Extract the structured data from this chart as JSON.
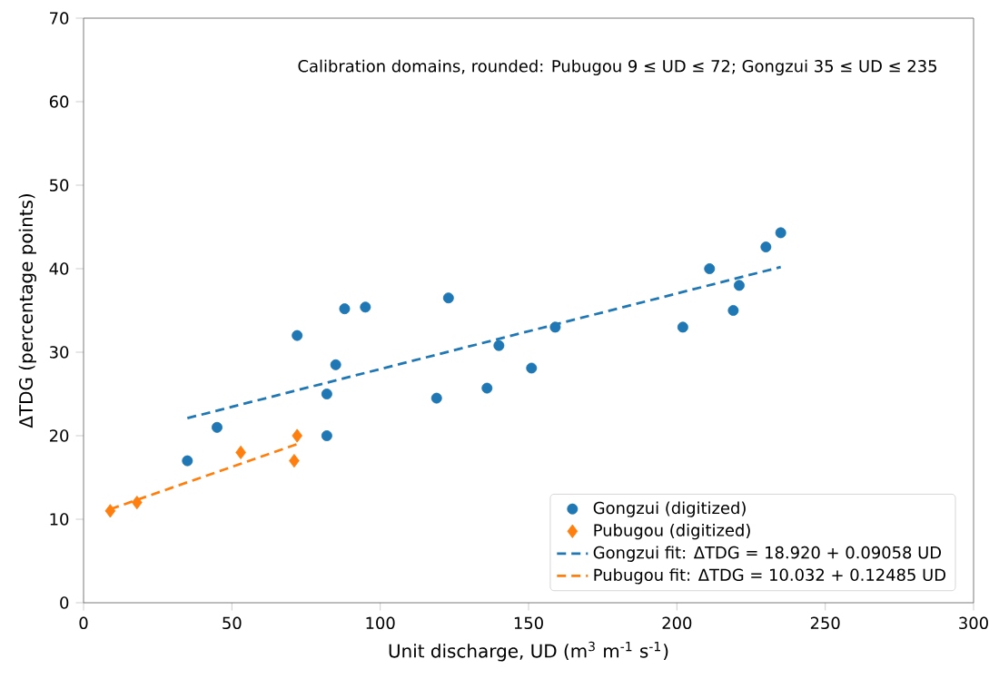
{
  "chart_data": {
    "type": "scatter",
    "xlabel": "Unit discharge, UD (m$^{3}$ m$^{-1}$ s$^{-1}$)",
    "ylabel": "ΔTDG (percentage points)",
    "xlim": [
      0,
      300
    ],
    "ylim": [
      0,
      70
    ],
    "xticks": [
      0,
      50,
      100,
      150,
      200,
      250,
      300
    ],
    "yticks": [
      0,
      10,
      20,
      30,
      40,
      50,
      60,
      70
    ],
    "grid": false,
    "legend": "bottom right",
    "annotations": [
      "Calibration domains, rounded: Pubugou 9 ≤ UD ≤ 72; Gongzui 35 ≤ UD ≤ 235"
    ],
    "series": [
      {
        "name": "Gongzui (digitized)",
        "marker": "circle",
        "color": "#1f77b4",
        "x": [
          35,
          45,
          72,
          82,
          82,
          85,
          88,
          95,
          119,
          123,
          136,
          140,
          151,
          159,
          202,
          211,
          219,
          221,
          230,
          235
        ],
        "values": [
          17,
          21,
          32,
          25,
          20,
          28.5,
          35.2,
          35.4,
          24.5,
          36.5,
          25.7,
          30.8,
          28.1,
          33,
          33,
          40,
          35,
          38,
          42.6,
          44.3
        ]
      },
      {
        "name": "Pubugou (digitized)",
        "marker": "diamond",
        "color": "#ff7f0e",
        "x": [
          9,
          18,
          53,
          71,
          72
        ],
        "values": [
          11,
          12,
          18,
          17,
          20
        ]
      },
      {
        "name": "Gongzui fit: ΔTDG = 18.920 + 0.09058 UD",
        "type": "line",
        "line_style": "dashed",
        "color": "#1f77b4",
        "x": [
          35,
          235
        ],
        "values": [
          22.1,
          40.2
        ]
      },
      {
        "name": "Pubugou fit: ΔTDG = 10.032 + 0.12485 UD",
        "type": "line",
        "line_style": "dashed",
        "color": "#ff7f0e",
        "x": [
          9,
          72
        ],
        "values": [
          11.2,
          19.0
        ]
      }
    ]
  }
}
